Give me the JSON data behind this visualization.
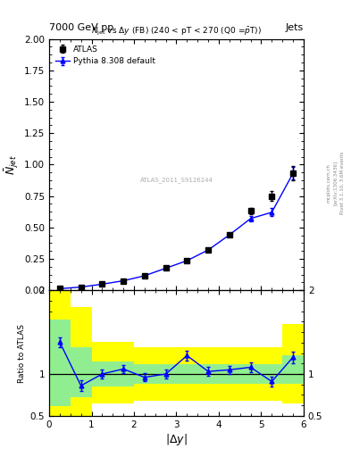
{
  "title_top": "7000 GeV pp",
  "title_right": "Jets",
  "watermark": "ATLAS_2011_S9126244",
  "ylabel_main": "$\\bar{N}_{jet}$",
  "ylabel_ratio": "Ratio to ATLAS",
  "xlabel": "$|\\Delta y|$",
  "xlim": [
    0,
    6
  ],
  "ylim_main": [
    0,
    2.0
  ],
  "ylim_ratio": [
    0.5,
    2.0
  ],
  "data_x": [
    0.25,
    0.75,
    1.25,
    1.75,
    2.25,
    2.75,
    3.25,
    3.75,
    4.25,
    4.75,
    5.25,
    5.75
  ],
  "data_y": [
    0.012,
    0.025,
    0.048,
    0.075,
    0.115,
    0.175,
    0.235,
    0.32,
    0.44,
    0.63,
    0.75,
    0.93
  ],
  "data_yerr": [
    0.002,
    0.003,
    0.004,
    0.005,
    0.007,
    0.009,
    0.01,
    0.013,
    0.016,
    0.022,
    0.04,
    0.055
  ],
  "mc_x": [
    0.25,
    0.75,
    1.25,
    1.75,
    2.25,
    2.75,
    3.25,
    3.75,
    4.25,
    4.75,
    5.25,
    5.75
  ],
  "mc_y": [
    0.012,
    0.025,
    0.048,
    0.075,
    0.115,
    0.175,
    0.235,
    0.32,
    0.44,
    0.57,
    0.62,
    0.93
  ],
  "mc_yerr": [
    0.001,
    0.002,
    0.003,
    0.004,
    0.006,
    0.008,
    0.009,
    0.011,
    0.014,
    0.019,
    0.032,
    0.048
  ],
  "ratio_x": [
    0.25,
    0.75,
    1.25,
    1.75,
    2.25,
    2.75,
    3.25,
    3.75,
    4.25,
    4.75,
    5.25,
    5.75
  ],
  "ratio_y": [
    1.38,
    0.86,
    1.0,
    1.06,
    0.96,
    1.0,
    1.22,
    1.03,
    1.05,
    1.08,
    0.91,
    1.2
  ],
  "ratio_yerr": [
    0.06,
    0.06,
    0.05,
    0.05,
    0.05,
    0.05,
    0.06,
    0.05,
    0.05,
    0.06,
    0.06,
    0.07
  ],
  "band_edges": [
    0.0,
    0.5,
    1.0,
    2.0,
    4.0,
    5.5,
    6.0
  ],
  "green_low": [
    0.62,
    0.72,
    0.85,
    0.88,
    0.88,
    0.88,
    0.88
  ],
  "green_high": [
    1.65,
    1.32,
    1.15,
    1.12,
    1.12,
    1.22,
    1.22
  ],
  "yellow_low": [
    0.4,
    0.5,
    0.65,
    0.68,
    0.68,
    0.65,
    0.65
  ],
  "yellow_high": [
    2.0,
    1.8,
    1.38,
    1.32,
    1.32,
    1.6,
    1.6
  ],
  "legend_data": "ATLAS",
  "legend_mc": "Pythia 8.308 default",
  "rivet_text": "Rivet 3.1.10, 3.6M events",
  "arxiv_text": "[arXiv:1306.3436]",
  "mcplots_text": "mcplots.cern.ch"
}
